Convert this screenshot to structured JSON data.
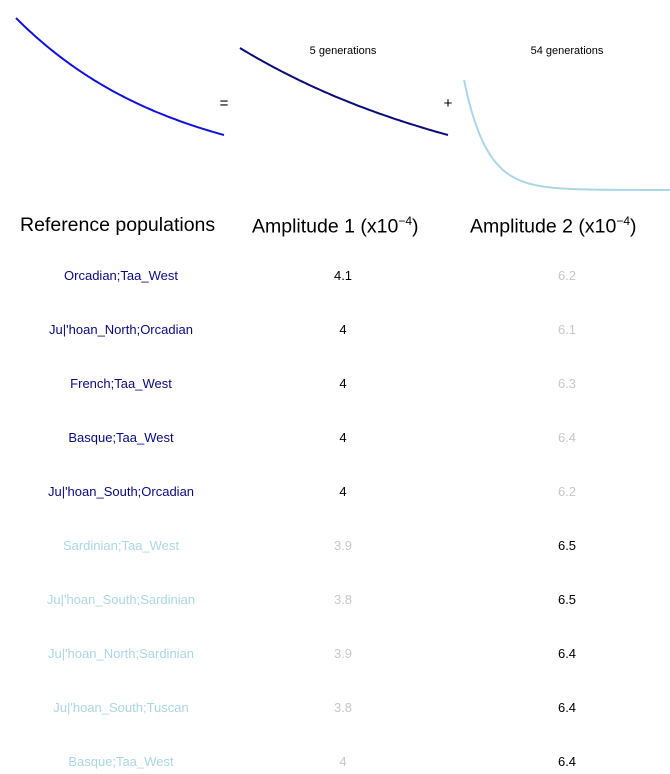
{
  "chart_data": {
    "type": "table",
    "curves": [
      {
        "color": "#1111dd",
        "decay": "total"
      },
      {
        "color": "#0a0a78",
        "decay": "slow",
        "label": "5 generations"
      },
      {
        "color": "#aad7e6",
        "decay": "fast",
        "label": "54 generations"
      }
    ],
    "operators": {
      "equals": "=",
      "plus": "+"
    },
    "headers": {
      "col1": "Reference populations",
      "col2_prefix": "Amplitude 1 (x10",
      "col2_exp": "−4",
      "col2_suffix": ")",
      "col3_prefix": "Amplitude 2 (x10",
      "col3_exp": "−4",
      "col3_suffix": ")"
    },
    "colors": {
      "dark_name": "#0a0a80",
      "light_name": "#aad7e6",
      "strong_value": "#000000",
      "faded_value": "#c8c8c8"
    },
    "rows": [
      {
        "name": "Orcadian;Taa_West",
        "amp1": "4.1",
        "amp2": "6.2",
        "group": 1
      },
      {
        "name": "Ju|'hoan_North;Orcadian",
        "amp1": "4",
        "amp2": "6.1",
        "group": 1
      },
      {
        "name": "French;Taa_West",
        "amp1": "4",
        "amp2": "6.3",
        "group": 1
      },
      {
        "name": "Basque;Taa_West",
        "amp1": "4",
        "amp2": "6.4",
        "group": 1
      },
      {
        "name": "Ju|'hoan_South;Orcadian",
        "amp1": "4",
        "amp2": "6.2",
        "group": 1
      },
      {
        "name": "Sardinian;Taa_West",
        "amp1": "3.9",
        "amp2": "6.5",
        "group": 2
      },
      {
        "name": "Ju|'hoan_South;Sardinian",
        "amp1": "3.8",
        "amp2": "6.5",
        "group": 2
      },
      {
        "name": "Ju|'hoan_North;Sardinian",
        "amp1": "3.9",
        "amp2": "6.4",
        "group": 2
      },
      {
        "name": "Ju|'hoan_South;Tuscan",
        "amp1": "3.8",
        "amp2": "6.4",
        "group": 2
      },
      {
        "name": "Basque;Taa_West",
        "amp1": "4",
        "amp2": "6.4",
        "group": 2
      }
    ]
  }
}
